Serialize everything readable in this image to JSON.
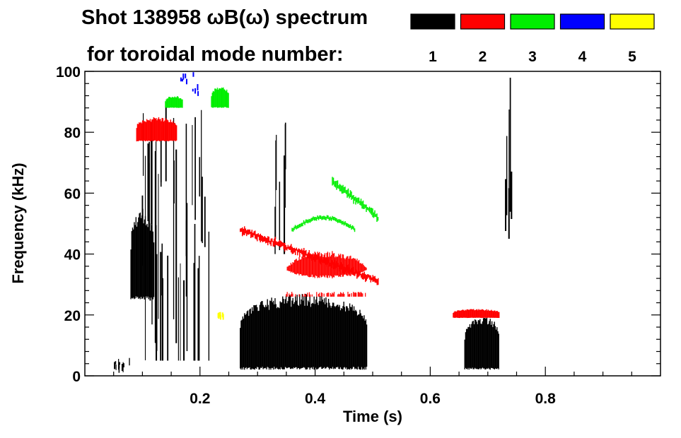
{
  "chart_data": {
    "type": "spectrogram",
    "title_line1": "Shot 138958 ωB(ω) spectrum",
    "title_line2": "for toroidal mode number:",
    "xlabel": "Time (s)",
    "ylabel": "Frequency (kHz)",
    "xlim": [
      0.0,
      1.0
    ],
    "ylim": [
      0,
      100
    ],
    "xticks": [
      0.2,
      0.4,
      0.6,
      0.8
    ],
    "xtick_labels": [
      "0.2",
      "0.4",
      "0.6",
      "0.8"
    ],
    "yticks": [
      0,
      20,
      40,
      60,
      80,
      100
    ],
    "ytick_labels": [
      "0",
      "20",
      "40",
      "60",
      "80",
      "100"
    ],
    "grid": false,
    "legend_placement": "top-right",
    "legend": [
      {
        "label": "1",
        "color": "#000000"
      },
      {
        "label": "2",
        "color": "#ff0000"
      },
      {
        "label": "3",
        "color": "#00ee00"
      },
      {
        "label": "4",
        "color": "#0000ff"
      },
      {
        "label": "5",
        "color": "#ffff00"
      }
    ],
    "features": [
      {
        "mode": "1",
        "kind": "patch",
        "t": [
          0.27,
          0.49
        ],
        "f": [
          2,
          27
        ]
      },
      {
        "mode": "1",
        "kind": "patch",
        "t": [
          0.66,
          0.72
        ],
        "f": [
          2,
          20
        ]
      },
      {
        "mode": "1",
        "kind": "patch",
        "t": [
          0.08,
          0.12
        ],
        "f": [
          25,
          55
        ]
      },
      {
        "mode": "1",
        "kind": "streaks",
        "t": [
          0.1,
          0.22
        ],
        "f": [
          5,
          90
        ]
      },
      {
        "mode": "1",
        "kind": "streaks",
        "t": [
          0.33,
          0.35
        ],
        "f": [
          40,
          85
        ]
      },
      {
        "mode": "1",
        "kind": "streaks",
        "t": [
          0.73,
          0.745
        ],
        "f": [
          45,
          100
        ]
      },
      {
        "mode": "1",
        "kind": "streaks",
        "t": [
          0.05,
          0.08
        ],
        "f": [
          1,
          6
        ]
      },
      {
        "mode": "2",
        "kind": "chirp",
        "t": [
          0.27,
          0.51
        ],
        "f": [
          48,
          31
        ]
      },
      {
        "mode": "2",
        "kind": "band",
        "t": [
          0.35,
          0.49
        ],
        "f": [
          26,
          44
        ]
      },
      {
        "mode": "2",
        "kind": "patch",
        "t": [
          0.09,
          0.16
        ],
        "f": [
          77,
          85
        ]
      },
      {
        "mode": "2",
        "kind": "patch",
        "t": [
          0.64,
          0.72
        ],
        "f": [
          19,
          22
        ]
      },
      {
        "mode": "3",
        "kind": "chirp",
        "t": [
          0.43,
          0.51
        ],
        "f": [
          64,
          52
        ]
      },
      {
        "mode": "3",
        "kind": "arc",
        "t": [
          0.36,
          0.47
        ],
        "f": [
          48,
          52
        ]
      },
      {
        "mode": "3",
        "kind": "patch",
        "t": [
          0.22,
          0.25
        ],
        "f": [
          88,
          95
        ]
      },
      {
        "mode": "3",
        "kind": "patch",
        "t": [
          0.14,
          0.17
        ],
        "f": [
          88,
          92
        ]
      },
      {
        "mode": "4",
        "kind": "points",
        "t": [
          0.16,
          0.2
        ],
        "f": [
          93,
          100
        ]
      },
      {
        "mode": "5",
        "kind": "points",
        "t": [
          0.23,
          0.24
        ],
        "f": [
          20,
          21
        ]
      }
    ]
  }
}
